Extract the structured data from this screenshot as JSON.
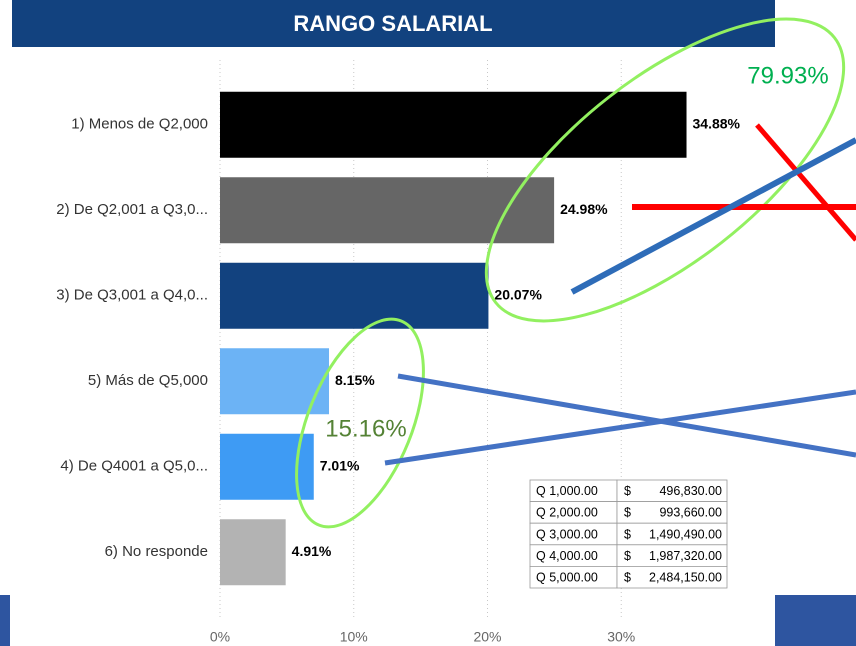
{
  "chart_data": {
    "type": "bar",
    "orientation": "horizontal",
    "title": "RANGO SALARIAL",
    "categories": [
      "1) Menos de Q2,000",
      "2) De Q2,001 a Q3,0...",
      "3) De Q3,001 a Q4,0...",
      "5) Más de Q5,000",
      "4) De Q4001 a Q5,0...",
      "6) No responde"
    ],
    "values": [
      34.88,
      24.98,
      20.07,
      8.15,
      7.01,
      4.91
    ],
    "value_labels": [
      "34.88%",
      "24.98%",
      "20.07%",
      "8.15%",
      "7.01%",
      "4.91%"
    ],
    "colors": [
      "#000000",
      "#666666",
      "#12427f",
      "#6cb3f5",
      "#3e9bf4",
      "#b3b3b3"
    ],
    "xlim": [
      0,
      40
    ],
    "xticks": [
      {
        "value": 0,
        "label": "0%"
      },
      {
        "value": 10,
        "label": "10%"
      },
      {
        "value": 20,
        "label": "20%"
      },
      {
        "value": 30,
        "label": "30%"
      }
    ],
    "grid": true,
    "annotations": [
      "79.93%",
      "15.16%"
    ],
    "table": {
      "rows": [
        [
          "Q 1,000.00",
          "$",
          "496,830.00"
        ],
        [
          "Q 2,000.00",
          "$",
          "993,660.00"
        ],
        [
          "Q 3,000.00",
          "$",
          "1,490,490.00"
        ],
        [
          "Q 4,000.00",
          "$",
          "1,987,320.00"
        ],
        [
          "Q 5,000.00",
          "$",
          "2,484,150.00"
        ]
      ]
    }
  }
}
